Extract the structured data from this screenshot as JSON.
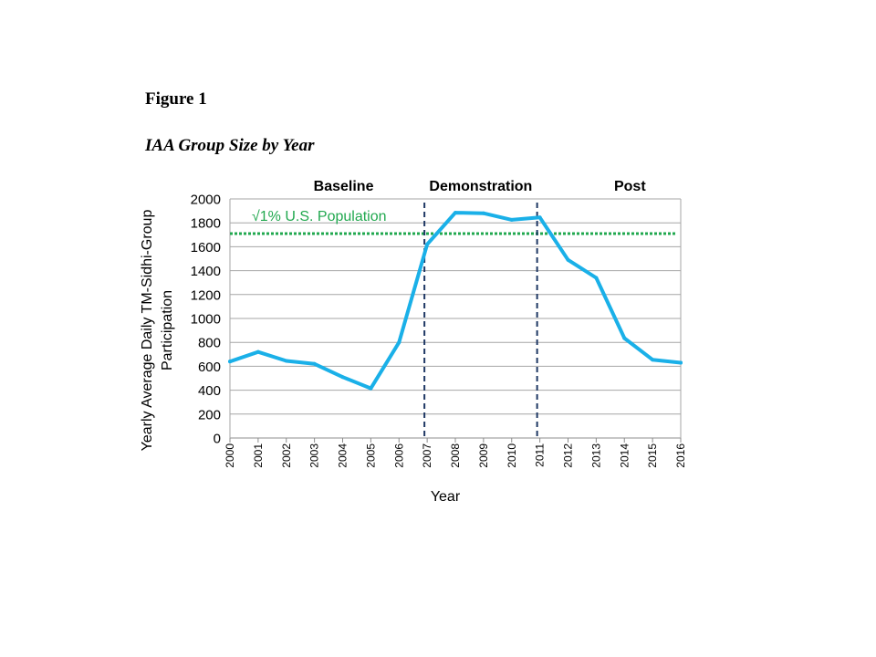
{
  "figure": {
    "label": "Figure 1",
    "title": "IAA Group Size by Year"
  },
  "chart_data": {
    "type": "line",
    "xlabel": "Year",
    "ylabel_lines": [
      "Yearly Average  Daily TM-Sidhi-Group",
      "Participation"
    ],
    "ylim": [
      0,
      2000
    ],
    "yticks": [
      0,
      200,
      400,
      600,
      800,
      1000,
      1200,
      1400,
      1600,
      1800,
      2000
    ],
    "grid": "horizontal",
    "x": [
      "2000",
      "2001",
      "2002",
      "2003",
      "2004",
      "2005",
      "2006",
      "2007",
      "2008",
      "2009",
      "2010",
      "2011",
      "2012",
      "2013",
      "2014",
      "2015",
      "2016"
    ],
    "series": [
      {
        "color": "#1ab0e8",
        "values": [
          640,
          720,
          645,
          620,
          510,
          415,
          800,
          1620,
          1885,
          1880,
          1825,
          1845,
          1490,
          1340,
          835,
          655,
          630
        ]
      }
    ],
    "reference_line": {
      "label": "√1% U.S. Population",
      "value": 1710,
      "color": "#21a84f",
      "style": "dotted"
    },
    "phase_dividers": [
      {
        "x": "2007",
        "color": "#1f3864",
        "style": "dashed"
      },
      {
        "x": "2011",
        "color": "#1f3864",
        "style": "dashed"
      }
    ],
    "phases": [
      {
        "label": "Baseline"
      },
      {
        "label": "Demonstration"
      },
      {
        "label": "Post"
      }
    ]
  }
}
